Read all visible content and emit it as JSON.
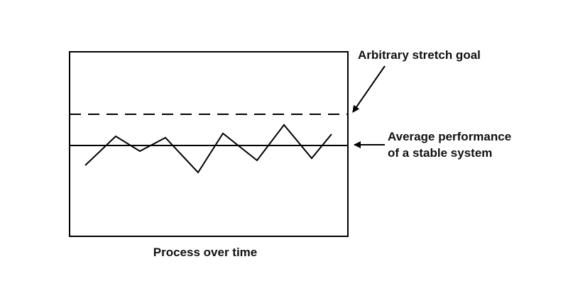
{
  "diagram": {
    "title": "",
    "labels": {
      "stretch_goal": "Arbitrary stretch goal",
      "average_line1": "Average performance",
      "average_line2": "of a stable system",
      "x_caption": "Process over time"
    },
    "colors": {
      "stroke": "#000000",
      "text": "#111111",
      "background": "#ffffff"
    },
    "lines": {
      "stretch_goal_style": "dashed",
      "average_style": "solid"
    }
  }
}
